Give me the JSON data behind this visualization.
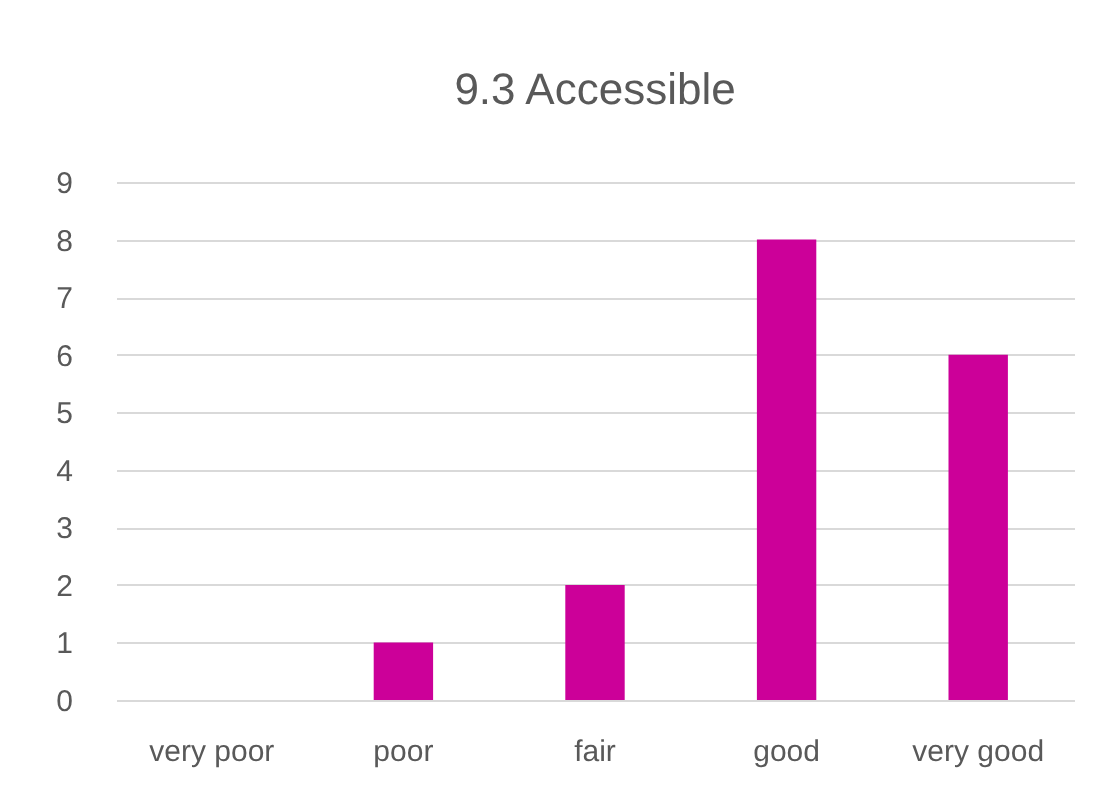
{
  "chart_data": {
    "type": "bar",
    "title": "9.3 Accessible",
    "categories": [
      "very poor",
      "poor",
      "fair",
      "good",
      "very good"
    ],
    "values": [
      0,
      1,
      2,
      8,
      6
    ],
    "color": "#cc0099",
    "ylim": [
      0,
      9
    ],
    "yticks": [
      0,
      1,
      2,
      3,
      4,
      5,
      6,
      7,
      8,
      9
    ],
    "grid": "y"
  }
}
